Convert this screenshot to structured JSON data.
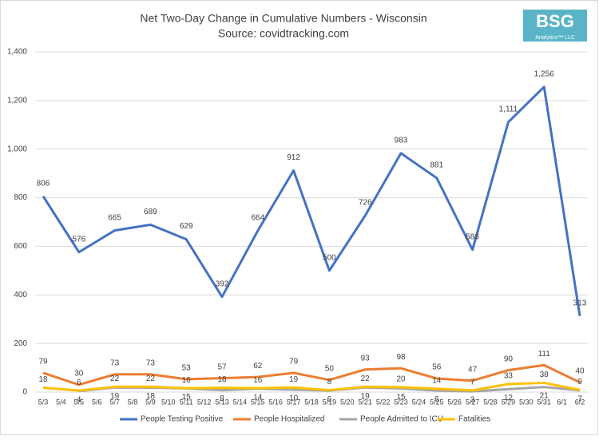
{
  "chart_data": {
    "type": "line",
    "title": "Net Two-Day Change in Cumulative Numbers - Wisconsin",
    "subtitle": "Source: covidtracking.com",
    "x": [
      "5/3",
      "5/5",
      "5/7",
      "5/9",
      "5/11",
      "5/13",
      "5/15",
      "5/17",
      "5/19",
      "5/21",
      "5/23",
      "5/25",
      "5/27",
      "5/29",
      "5/31",
      "6/2"
    ],
    "xticks": [
      "5/3",
      "5/4",
      "5/5",
      "5/6",
      "5/7",
      "5/8",
      "5/9",
      "5/10",
      "5/11",
      "5/12",
      "5/13",
      "5/14",
      "5/15",
      "5/16",
      "5/17",
      "5/18",
      "5/19",
      "5/20",
      "5/21",
      "5/22",
      "5/23",
      "5/24",
      "5/25",
      "5/26",
      "5/27",
      "5/28",
      "5/29",
      "5/30",
      "5/31",
      "6/1",
      "6/2"
    ],
    "ylim": [
      0,
      1400
    ],
    "yticks": [
      0,
      200,
      400,
      600,
      800,
      {
        "value": 1000,
        "label": "1,000"
      },
      {
        "value": 1200,
        "label": "1,200"
      },
      {
        "value": 1400,
        "label": "1,400"
      }
    ],
    "grid": true,
    "legend": "bottom",
    "series": [
      {
        "name": "People Testing Positive",
        "color": "#4472c4",
        "values": [
          806,
          576,
          665,
          689,
          629,
          392,
          664,
          912,
          500,
          726,
          983,
          881,
          586,
          1111,
          1256,
          313
        ],
        "value_labels": [
          "806",
          "576",
          "665",
          "689",
          "629",
          "392",
          "664",
          "912",
          "500",
          "726",
          "983",
          "881",
          "586",
          "1,111",
          "1,256",
          "313"
        ]
      },
      {
        "name": "People Hospitalized",
        "color": "#ed7d31",
        "values": [
          79,
          30,
          73,
          73,
          53,
          57,
          62,
          79,
          50,
          93,
          98,
          56,
          47,
          90,
          111,
          40
        ]
      },
      {
        "name": "People Admitted to ICU",
        "color": "#a5a5a5",
        "values": [
          null,
          4,
          19,
          18,
          15,
          8,
          14,
          10,
          6,
          19,
          15,
          6,
          3,
          12,
          21,
          7
        ]
      },
      {
        "name": "Fatalities",
        "color": "#ffc000",
        "values": [
          18,
          6,
          22,
          22,
          16,
          18,
          16,
          19,
          8,
          22,
          20,
          14,
          7,
          33,
          38,
          9
        ]
      }
    ]
  },
  "logo": {
    "text": "BSG",
    "subtext": "Analytics™ LLC"
  }
}
